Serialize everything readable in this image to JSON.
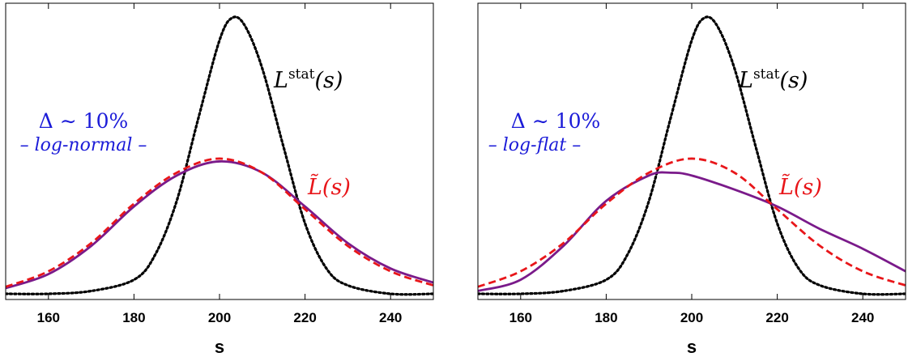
{
  "chart_data": [
    {
      "type": "line",
      "xlabel": "s",
      "xlim": [
        150,
        250
      ],
      "xticks": [
        160,
        180,
        200,
        220,
        240
      ],
      "grid": false,
      "y_axis_labels": false,
      "annotations": {
        "delta": "Δ ∼ 10%",
        "model": "– log-normal –",
        "stat_label": "L",
        "stat_sup": "stat",
        "stat_arg": "(s)",
        "tilde_label": "L̃(s)"
      },
      "colors": {
        "stat": "#000000",
        "purple": "#7a1a8a",
        "red": "#e8161a",
        "blue": "#1b1bd8"
      },
      "series": [
        {
          "style": "black-dotted",
          "x": [
            150,
            160,
            170,
            180,
            185,
            190,
            195,
            200,
            203,
            206,
            210,
            215,
            220,
            225,
            230,
            240,
            250
          ],
          "y": [
            0.0,
            0.0,
            0.01,
            0.05,
            0.14,
            0.33,
            0.62,
            0.9,
            0.98,
            0.95,
            0.8,
            0.52,
            0.25,
            0.09,
            0.03,
            0.0,
            0.0
          ]
        },
        {
          "style": "purple-solid",
          "x": [
            150,
            160,
            170,
            180,
            190,
            200,
            210,
            220,
            230,
            240,
            250
          ],
          "y": [
            0.02,
            0.07,
            0.17,
            0.31,
            0.42,
            0.47,
            0.43,
            0.31,
            0.18,
            0.09,
            0.04
          ]
        },
        {
          "style": "red-dashed",
          "x": [
            150,
            160,
            170,
            180,
            190,
            200,
            210,
            220,
            230,
            240,
            250
          ],
          "y": [
            0.025,
            0.08,
            0.18,
            0.32,
            0.43,
            0.48,
            0.43,
            0.3,
            0.17,
            0.08,
            0.03
          ]
        }
      ]
    },
    {
      "type": "line",
      "xlabel": "s",
      "xlim": [
        150,
        250
      ],
      "xticks": [
        160,
        180,
        200,
        220,
        240
      ],
      "grid": false,
      "y_axis_labels": false,
      "annotations": {
        "delta": "Δ ∼ 10%",
        "model": "– log-flat –",
        "stat_label": "L",
        "stat_sup": "stat",
        "stat_arg": "(s)",
        "tilde_label": "L̃(s)"
      },
      "colors": {
        "stat": "#000000",
        "purple": "#7a1a8a",
        "red": "#e8161a",
        "blue": "#1b1bd8"
      },
      "series": [
        {
          "style": "black-dotted",
          "x": [
            150,
            160,
            170,
            180,
            185,
            190,
            195,
            200,
            203,
            206,
            210,
            215,
            220,
            225,
            230,
            240,
            250
          ],
          "y": [
            0.0,
            0.0,
            0.01,
            0.05,
            0.14,
            0.33,
            0.62,
            0.9,
            0.98,
            0.95,
            0.8,
            0.52,
            0.25,
            0.09,
            0.03,
            0.0,
            0.0
          ]
        },
        {
          "style": "purple-solid",
          "x": [
            150,
            160,
            170,
            180,
            190,
            195,
            200,
            210,
            220,
            230,
            240,
            250
          ],
          "y": [
            0.01,
            0.05,
            0.17,
            0.33,
            0.42,
            0.43,
            0.42,
            0.37,
            0.31,
            0.23,
            0.16,
            0.08
          ]
        },
        {
          "style": "red-dashed",
          "x": [
            150,
            160,
            170,
            180,
            190,
            200,
            210,
            220,
            230,
            240,
            250
          ],
          "y": [
            0.025,
            0.08,
            0.18,
            0.32,
            0.43,
            0.48,
            0.43,
            0.3,
            0.17,
            0.08,
            0.03
          ]
        }
      ]
    }
  ]
}
